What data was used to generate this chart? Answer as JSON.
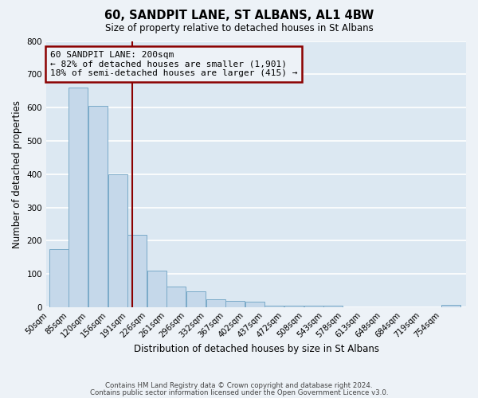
{
  "title": "60, SANDPIT LANE, ST ALBANS, AL1 4BW",
  "subtitle": "Size of property relative to detached houses in St Albans",
  "xlabel": "Distribution of detached houses by size in St Albans",
  "ylabel": "Number of detached properties",
  "bin_labels": [
    "50sqm",
    "85sqm",
    "120sqm",
    "156sqm",
    "191sqm",
    "226sqm",
    "261sqm",
    "296sqm",
    "332sqm",
    "367sqm",
    "402sqm",
    "437sqm",
    "472sqm",
    "508sqm",
    "543sqm",
    "578sqm",
    "613sqm",
    "648sqm",
    "684sqm",
    "719sqm",
    "754sqm"
  ],
  "bin_edges": [
    50,
    85,
    120,
    156,
    191,
    226,
    261,
    296,
    332,
    367,
    402,
    437,
    472,
    508,
    543,
    578,
    613,
    648,
    684,
    719,
    754,
    789
  ],
  "bar_values": [
    175,
    660,
    605,
    400,
    218,
    110,
    63,
    48,
    25,
    18,
    17,
    5,
    4,
    4,
    4,
    0,
    0,
    0,
    0,
    0,
    8
  ],
  "bar_color": "#c5d8ea",
  "bar_edge_color": "#7aaac8",
  "vline_x": 200,
  "vline_color": "#8b0000",
  "annotation_title": "60 SANDPIT LANE: 200sqm",
  "annotation_line1": "← 82% of detached houses are smaller (1,901)",
  "annotation_line2": "18% of semi-detached houses are larger (415) →",
  "annotation_box_edgecolor": "#8b0000",
  "ylim": [
    0,
    800
  ],
  "yticks": [
    0,
    100,
    200,
    300,
    400,
    500,
    600,
    700,
    800
  ],
  "plot_bg_color": "#dce8f2",
  "fig_bg_color": "#edf2f7",
  "grid_color": "#ffffff",
  "footer_line1": "Contains HM Land Registry data © Crown copyright and database right 2024.",
  "footer_line2": "Contains public sector information licensed under the Open Government Licence v3.0."
}
